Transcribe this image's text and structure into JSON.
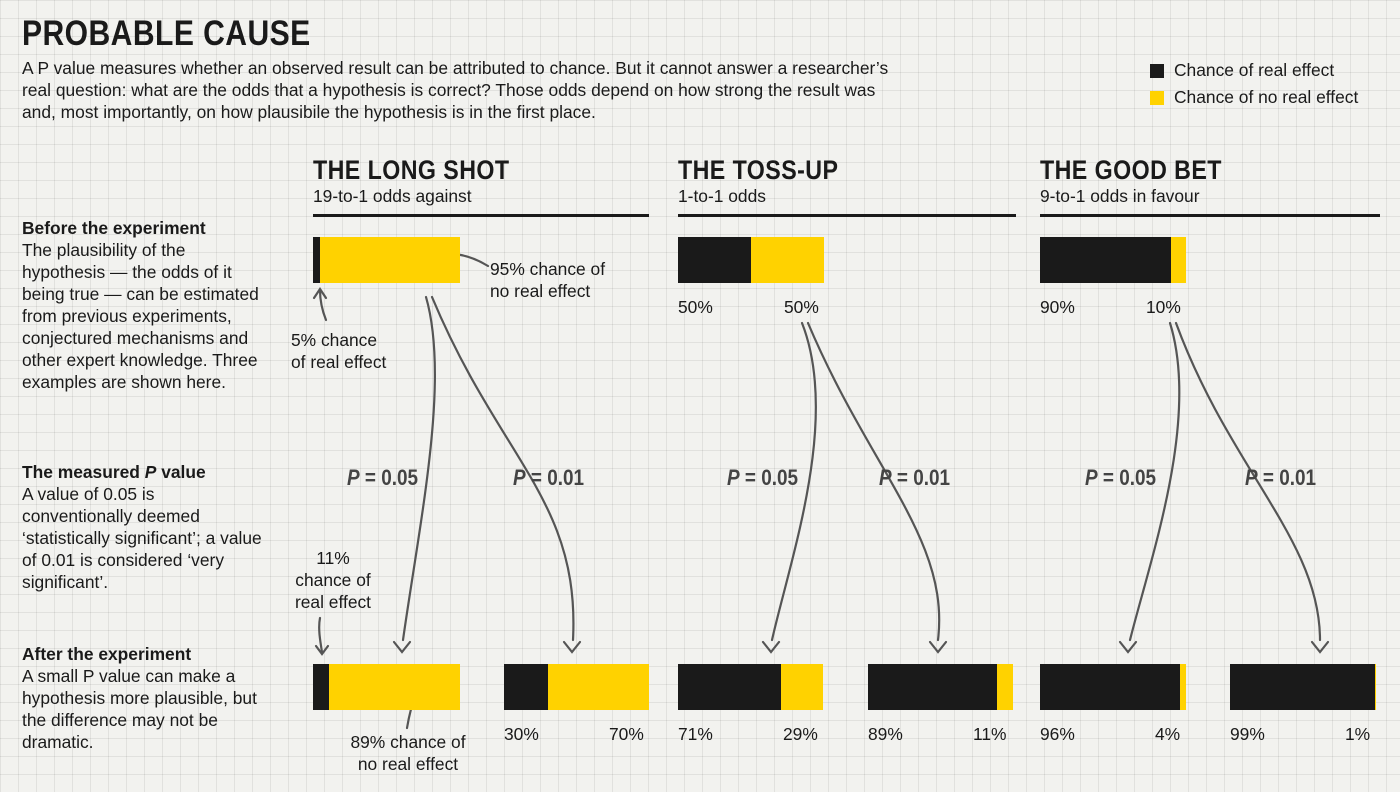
{
  "title": "PROBABLE CAUSE",
  "intro": "A P value measures whether an observed result can be attributed to chance. But it cannot answer a researcher’s real question: what are the odds that a hypothesis is correct? Those odds depend on how strong the result was and, most importantly, on how plausibile the hypothesis is in the first place.",
  "legend": {
    "real": "Chance of real effect",
    "no_real": "Chance of no real effect"
  },
  "colors": {
    "real": "#1a1a1a",
    "no_real": "#ffd200",
    "arrow": "#555555"
  },
  "sidebar": {
    "before_heading": "Before the experiment",
    "before_text": "The plausibility of the hypothesis — the odds of it being true — can be estimated from previous experiments, conjectured mechanisms and other expert knowledge. Three examples are shown here.",
    "pvalue_heading_pre": "The measured ",
    "pvalue_heading_p": "P",
    "pvalue_heading_post": " value",
    "pvalue_text": "A value of 0.05 is conventionally deemed ‘statistically significant’; a value of 0.01 is considered ‘very significant’.",
    "after_heading": "After the experiment",
    "after_text": "A small P value can make a hypothesis more plausible, but the difference may not be dramatic."
  },
  "p_symbol": "P",
  "p_labels": [
    "= 0.05",
    "= 0.01"
  ],
  "columns": [
    {
      "title": "THE LONG SHOT",
      "subtitle": "19-to-1 odds against",
      "before": {
        "real": 5,
        "no_real": 95,
        "real_label": "",
        "no_real_label": ""
      },
      "after": [
        {
          "real": 11,
          "no_real": 89,
          "real_label": "",
          "no_real_label": ""
        },
        {
          "real": 30,
          "no_real": 70,
          "real_label": "30%",
          "no_real_label": "70%"
        }
      ],
      "annotations": {
        "before_real": "5% chance\nof real effect",
        "before_no_real": "95% chance of\nno real effect",
        "after_real": "11%\nchance of\nreal effect",
        "after_no_real": "89% chance of\nno real effect"
      }
    },
    {
      "title": "THE TOSS-UP",
      "subtitle": "1-to-1 odds",
      "before": {
        "real": 50,
        "no_real": 50,
        "real_label": "50%",
        "no_real_label": "50%"
      },
      "after": [
        {
          "real": 71,
          "no_real": 29,
          "real_label": "71%",
          "no_real_label": "29%"
        },
        {
          "real": 89,
          "no_real": 11,
          "real_label": "89%",
          "no_real_label": "11%"
        }
      ]
    },
    {
      "title": "THE GOOD BET",
      "subtitle": "9-to-1 odds in favour",
      "before": {
        "real": 90,
        "no_real": 10,
        "real_label": "90%",
        "no_real_label": "10%"
      },
      "after": [
        {
          "real": 96,
          "no_real": 4,
          "real_label": "96%",
          "no_real_label": "4%"
        },
        {
          "real": 99,
          "no_real": 1,
          "real_label": "99%",
          "no_real_label": "1%"
        }
      ]
    }
  ]
}
